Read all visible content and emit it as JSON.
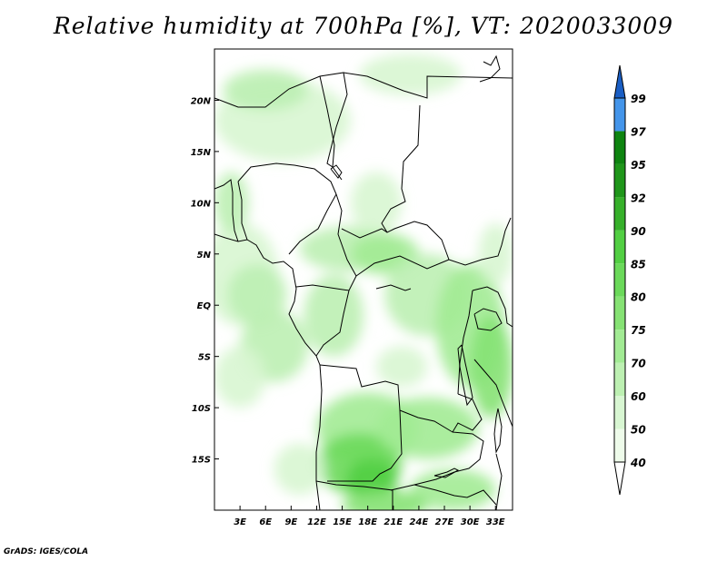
{
  "title": "Relative humidity at 700hPa [%], VT: 2020033009",
  "credit": "GrADS: IGES/COLA",
  "map": {
    "lon_range": [
      0,
      35
    ],
    "lat_range": [
      -20,
      25
    ],
    "lon_ticks": [
      {
        "value": 3,
        "label": "3E"
      },
      {
        "value": 6,
        "label": "6E"
      },
      {
        "value": 9,
        "label": "9E"
      },
      {
        "value": 12,
        "label": "12E"
      },
      {
        "value": 15,
        "label": "15E"
      },
      {
        "value": 18,
        "label": "18E"
      },
      {
        "value": 21,
        "label": "21E"
      },
      {
        "value": 24,
        "label": "24E"
      },
      {
        "value": 27,
        "label": "27E"
      },
      {
        "value": 30,
        "label": "30E"
      },
      {
        "value": 33,
        "label": "33E"
      }
    ],
    "lat_ticks": [
      {
        "value": 20,
        "label": "20N"
      },
      {
        "value": 15,
        "label": "15N"
      },
      {
        "value": 10,
        "label": "10N"
      },
      {
        "value": 5,
        "label": "5N"
      },
      {
        "value": 0,
        "label": "EQ"
      },
      {
        "value": -5,
        "label": "5S"
      },
      {
        "value": -10,
        "label": "10S"
      },
      {
        "value": -15,
        "label": "15S"
      }
    ]
  },
  "colorbar": {
    "levels": [
      {
        "label": "40",
        "color": "#eefbea"
      },
      {
        "label": "50",
        "color": "#d8f6d2"
      },
      {
        "label": "60",
        "color": "#bdf0b2"
      },
      {
        "label": "70",
        "color": "#a2eb94"
      },
      {
        "label": "75",
        "color": "#86e274"
      },
      {
        "label": "80",
        "color": "#6bd95a"
      },
      {
        "label": "85",
        "color": "#52cf43"
      },
      {
        "label": "90",
        "color": "#36b02a"
      },
      {
        "label": "92",
        "color": "#1f961a"
      },
      {
        "label": "95",
        "color": "#0e8410"
      },
      {
        "label": "97",
        "color": "#4495ea"
      },
      {
        "label": "99",
        "color": "#2171d8"
      }
    ],
    "under_color": "#ffffff",
    "over_color": "#1a5ec4"
  },
  "humidity_regions": [
    {
      "lon": 3.0,
      "lat": 3.0,
      "rx": 4.5,
      "ry": 5.0,
      "level": 1
    },
    {
      "lon": 5.0,
      "lat": 1.0,
      "rx": 3.5,
      "ry": 3.0,
      "level": 2
    },
    {
      "lon": 7.0,
      "lat": -4.0,
      "rx": 4.0,
      "ry": 3.5,
      "level": 2
    },
    {
      "lon": 3.0,
      "lat": -7.0,
      "rx": 3.0,
      "ry": 3.0,
      "level": 1
    },
    {
      "lon": 16.0,
      "lat": 5.5,
      "rx": 6.0,
      "ry": 2.2,
      "level": 2
    },
    {
      "lon": 20.0,
      "lat": 5.0,
      "rx": 4.0,
      "ry": 2.0,
      "level": 3
    },
    {
      "lon": 25.0,
      "lat": 1.0,
      "rx": 5.0,
      "ry": 4.0,
      "level": 2
    },
    {
      "lon": 14.0,
      "lat": -1.0,
      "rx": 3.5,
      "ry": 4.0,
      "level": 2
    },
    {
      "lon": 30.0,
      "lat": -2.0,
      "rx": 4.0,
      "ry": 6.0,
      "level": 3
    },
    {
      "lon": 32.5,
      "lat": -6.0,
      "rx": 2.5,
      "ry": 5.0,
      "level": 4
    },
    {
      "lon": 18.0,
      "lat": -12.0,
      "rx": 6.0,
      "ry": 3.5,
      "level": 3
    },
    {
      "lon": 17.0,
      "lat": -15.5,
      "rx": 5.0,
      "ry": 3.0,
      "level": 5
    },
    {
      "lon": 18.5,
      "lat": -17.0,
      "rx": 3.0,
      "ry": 2.0,
      "level": 6
    },
    {
      "lon": 25.0,
      "lat": -12.0,
      "rx": 6.0,
      "ry": 3.0,
      "level": 3
    },
    {
      "lon": 28.0,
      "lat": -18.0,
      "rx": 5.0,
      "ry": 2.0,
      "level": 3
    },
    {
      "lon": 10.0,
      "lat": -16.0,
      "rx": 3.0,
      "ry": 2.5,
      "level": 1
    },
    {
      "lon": 20.0,
      "lat": -19.5,
      "rx": 5.0,
      "ry": 1.5,
      "level": 4
    },
    {
      "lon": 8.0,
      "lat": 18.0,
      "rx": 8.0,
      "ry": 4.0,
      "level": 1
    },
    {
      "lon": 6.0,
      "lat": 21.0,
      "rx": 5.0,
      "ry": 2.0,
      "level": 2
    },
    {
      "lon": 23.0,
      "lat": 22.5,
      "rx": 6.0,
      "ry": 2.0,
      "level": 1
    },
    {
      "lon": 19.0,
      "lat": 10.0,
      "rx": 3.0,
      "ry": 3.0,
      "level": 1
    },
    {
      "lon": 2.0,
      "lat": 10.0,
      "rx": 2.0,
      "ry": 3.0,
      "level": 2
    },
    {
      "lon": 33.0,
      "lat": 5.0,
      "rx": 2.0,
      "ry": 3.0,
      "level": 1
    },
    {
      "lon": 22.0,
      "lat": -6.0,
      "rx": 3.0,
      "ry": 2.0,
      "level": 1
    }
  ]
}
